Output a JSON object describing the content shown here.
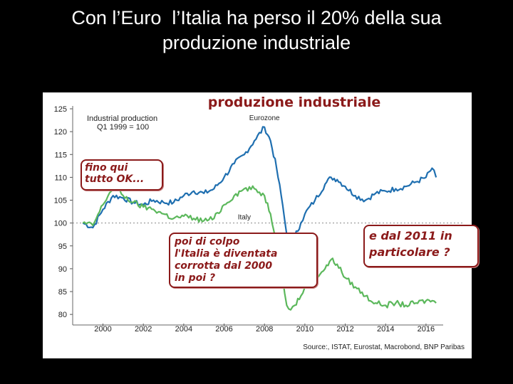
{
  "slide": {
    "title_lines": [
      "Con l’Euro  l’Italia ha perso il 20% della sua",
      "produzione industriale"
    ]
  },
  "chart_data": {
    "type": "line",
    "title": "produzione industriale",
    "subtitle_lines": [
      "Industrial production",
      "Q1 1999 = 100"
    ],
    "xlabel": "",
    "ylabel": "",
    "xlim": [
      1998.5,
      2016.85
    ],
    "ylim": [
      78,
      125
    ],
    "x_ticks": [
      2000,
      2002,
      2004,
      2006,
      2008,
      2010,
      2012,
      2014,
      2016
    ],
    "x_tick_labels": [
      "2000",
      "2002",
      "2004",
      "2006",
      "2008",
      "2010",
      "2012",
      "2014",
      "2016"
    ],
    "y_ticks": [
      80,
      85,
      90,
      95,
      100,
      105,
      110,
      115,
      120,
      125
    ],
    "y_tick_labels": [
      "80",
      "85",
      "90",
      "95",
      "100",
      "105",
      "110",
      "115",
      "120",
      "125"
    ],
    "baseline": 100,
    "grid": false,
    "source": "Source:, ISTAT, Eurostat, Macrobond, BNP Paribas",
    "series": [
      {
        "name": "Eurozone",
        "color": "#1f6fb0",
        "label_at": [
          2008,
          122.5
        ],
        "x": [
          1999.0,
          1999.5,
          2000.0,
          2000.5,
          2001.0,
          2001.5,
          2002.0,
          2002.5,
          2003.0,
          2003.5,
          2004.0,
          2004.5,
          2005.0,
          2005.5,
          2006.0,
          2006.5,
          2007.0,
          2007.5,
          2008.0,
          2008.3,
          2008.6,
          2008.9,
          2009.1,
          2009.3,
          2009.5,
          2009.8,
          2010.0,
          2010.5,
          2011.0,
          2011.3,
          2011.6,
          2012.0,
          2012.5,
          2013.0,
          2013.5,
          2014.0,
          2014.5,
          2015.0,
          2015.5,
          2016.0,
          2016.3,
          2016.5
        ],
        "y": [
          100,
          99,
          103,
          106,
          105.5,
          104.5,
          104,
          105,
          104.5,
          104.5,
          106,
          107,
          106.5,
          107.5,
          110,
          113,
          115,
          118,
          121,
          118,
          112,
          104,
          97.5,
          95,
          97,
          100,
          102,
          105,
          108.5,
          110,
          109.5,
          108,
          106,
          105,
          106.5,
          107,
          107.5,
          108,
          109,
          110,
          112,
          110
        ]
      },
      {
        "name": "Italy",
        "color": "#5cb85c",
        "label_at": [
          2007,
          100.8
        ],
        "x": [
          1999.0,
          1999.5,
          2000.0,
          2000.5,
          2001.0,
          2001.5,
          2002.0,
          2002.5,
          2003.0,
          2003.5,
          2004.0,
          2004.5,
          2005.0,
          2005.5,
          2006.0,
          2006.5,
          2007.0,
          2007.5,
          2008.0,
          2008.3,
          2008.6,
          2008.9,
          2009.1,
          2009.3,
          2009.5,
          2009.8,
          2010.0,
          2010.5,
          2011.0,
          2011.3,
          2011.6,
          2012.0,
          2012.5,
          2013.0,
          2013.5,
          2014.0,
          2014.5,
          2015.0,
          2015.5,
          2016.0,
          2016.3,
          2016.5
        ],
        "y": [
          100,
          99.5,
          104,
          108,
          106,
          104.5,
          103.5,
          103,
          102,
          101,
          101.5,
          101,
          100.5,
          101,
          104,
          106,
          107.5,
          107.5,
          106,
          102,
          96,
          88,
          82,
          81,
          82,
          84,
          86,
          88,
          90,
          92,
          91,
          88,
          86,
          84,
          82.5,
          82,
          82.5,
          82,
          82.5,
          83,
          83,
          82.5
        ]
      }
    ],
    "annotations": [
      {
        "id": "callout-1",
        "lines": [
          "fino qui",
          "tutto OK..."
        ]
      },
      {
        "id": "callout-2",
        "lines": [
          "poi di colpo",
          "l'Italia è diventata",
          "corrotta dal 2000",
          "in poi ?"
        ]
      },
      {
        "id": "callout-3",
        "lines": [
          "e dal 2011 in",
          "particolare ?"
        ]
      }
    ]
  }
}
